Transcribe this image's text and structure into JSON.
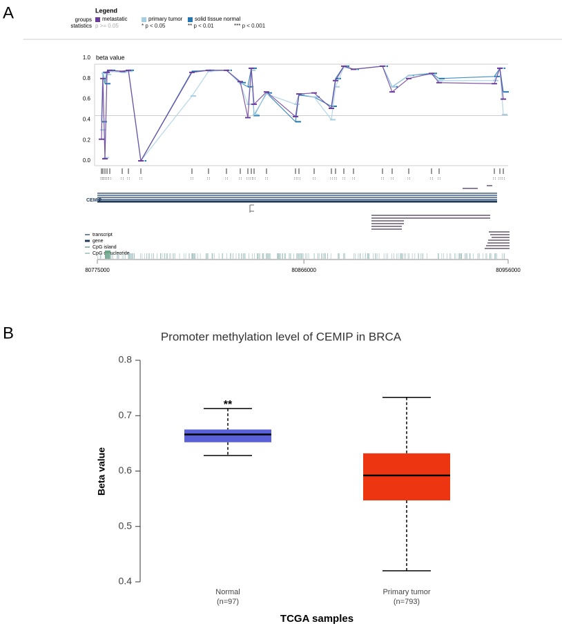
{
  "chart_data": [
    {
      "type": "line",
      "panel": "A",
      "legend_title": "Legend",
      "legend_groups_label": "groups",
      "legend_statistics_label": "statistics",
      "statistics": [
        "p >= 0.05",
        "* p < 0.05",
        "** p < 0.01",
        "*** p < 0.001"
      ],
      "ylabel": "beta value",
      "x": [
        80776825,
        80777434,
        80778346,
        80779259,
        80780476,
        80785951,
        80788689,
        80794165,
        80816675,
        80823976,
        80831885,
        80837969,
        80841316,
        80842837,
        80844053,
        80849529,
        80862305,
        80863826,
        80870519,
        80878124,
        80879949,
        80883599,
        80887858,
        80900635,
        80904893,
        80912194,
        80922233,
        80925579,
        80949914,
        80952349,
        80953870
      ],
      "series": [
        {
          "name": "metastatic",
          "color": "#6a3d9a",
          "values": [
            0.21,
            0.8,
            0.02,
            0.86,
            0.88,
            0.87,
            0.88,
            0.0,
            0.86,
            0.88,
            0.88,
            0.77,
            0.42,
            0.9,
            0.55,
            0.67,
            0.43,
            0.65,
            0.66,
            0.51,
            0.78,
            0.92,
            0.89,
            0.92,
            0.67,
            0.8,
            0.85,
            0.76,
            0.75,
            0.9,
            0.6
          ]
        },
        {
          "name": "primary tumor",
          "color": "#a6cee3",
          "values": [
            0.3,
            0.85,
            0.03,
            0.84,
            0.87,
            0.86,
            0.87,
            0.0,
            0.63,
            0.87,
            0.88,
            0.75,
            0.55,
            0.88,
            0.45,
            0.65,
            0.55,
            0.65,
            0.62,
            0.4,
            0.72,
            0.91,
            0.89,
            0.92,
            0.72,
            0.83,
            0.84,
            0.78,
            0.78,
            0.9,
            0.45
          ]
        },
        {
          "name": "solid tissue normal",
          "color": "#1f78b4",
          "values": [
            0.38,
            0.86,
            0.75,
            0.87,
            0.88,
            0.87,
            0.88,
            0.0,
            0.87,
            0.88,
            0.88,
            0.76,
            0.72,
            0.9,
            0.44,
            0.66,
            0.38,
            0.64,
            0.62,
            0.53,
            0.8,
            0.92,
            0.89,
            0.92,
            0.72,
            0.83,
            0.85,
            0.8,
            0.82,
            0.9,
            0.67
          ]
        }
      ],
      "reference_line": 0.44,
      "ylim": [
        0,
        1
      ],
      "yticks": [
        {
          "value": 0,
          "label": "0.0"
        },
        0.2,
        0.4,
        0.6,
        0.8,
        {
          "value": 1,
          "label": "1.0"
        }
      ],
      "xlim": [
        80775000,
        80956000
      ],
      "xticks": [
        80775000,
        80866000,
        80956000
      ],
      "gene": "CEMIP",
      "track_labels": [
        "transcript",
        "gene",
        "CpG island",
        "CpG dinucleotide"
      ]
    },
    {
      "type": "box",
      "panel": "B",
      "title": "Promoter methylation level of CEMIP in BRCA",
      "xlabel": "TCGA samples",
      "ylabel": "Beta value",
      "categories": [
        "Normal",
        "Primary tumor"
      ],
      "sample_sizes": [
        "(n=97)",
        "(n=793)"
      ],
      "colors": [
        "#5a60d8",
        "#ee3512"
      ],
      "whislo": [
        0.628,
        0.42
      ],
      "q1": [
        0.652,
        0.547
      ],
      "median": [
        0.666,
        0.592
      ],
      "q3": [
        0.675,
        0.632
      ],
      "whishi": [
        0.713,
        0.733
      ],
      "annotation": "**",
      "ylim": [
        0.4,
        0.8
      ],
      "yticks": [
        0.4,
        0.5,
        0.6,
        0.7,
        0.8
      ]
    }
  ]
}
